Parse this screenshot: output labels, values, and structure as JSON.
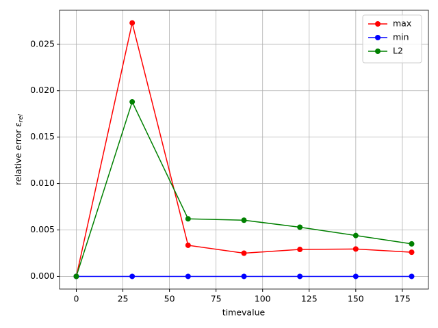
{
  "chart_data": {
    "type": "line",
    "xlabel": "timevalue",
    "ylabel": "relative error ε",
    "ylabel_subscript": "rel",
    "x": [
      0,
      30,
      60,
      90,
      120,
      150,
      180
    ],
    "series": [
      {
        "name": "max",
        "color": "#ff0000",
        "values": [
          0,
          0.0273,
          0.00335,
          0.0025,
          0.0029,
          0.00295,
          0.0026
        ]
      },
      {
        "name": "min",
        "color": "#0000ff",
        "values": [
          0,
          0,
          0,
          0,
          0,
          0,
          0
        ]
      },
      {
        "name": "L2",
        "color": "#008000",
        "values": [
          0,
          0.0188,
          0.0062,
          0.00605,
          0.0053,
          0.0044,
          0.0035
        ]
      }
    ],
    "xlim": [
      -9,
      189
    ],
    "ylim": [
      -0.001365,
      0.028665
    ],
    "xticks": [
      0,
      25,
      50,
      75,
      100,
      125,
      150,
      175
    ],
    "yticks": [
      {
        "value": 0,
        "label": "0.000"
      },
      {
        "value": 0.005,
        "label": "0.005"
      },
      {
        "value": 0.01,
        "label": "0.010"
      },
      {
        "value": 0.015,
        "label": "0.015"
      },
      {
        "value": 0.02,
        "label": "0.020"
      },
      {
        "value": 0.025,
        "label": "0.025"
      }
    ],
    "grid": true,
    "legend": "upper-right"
  }
}
